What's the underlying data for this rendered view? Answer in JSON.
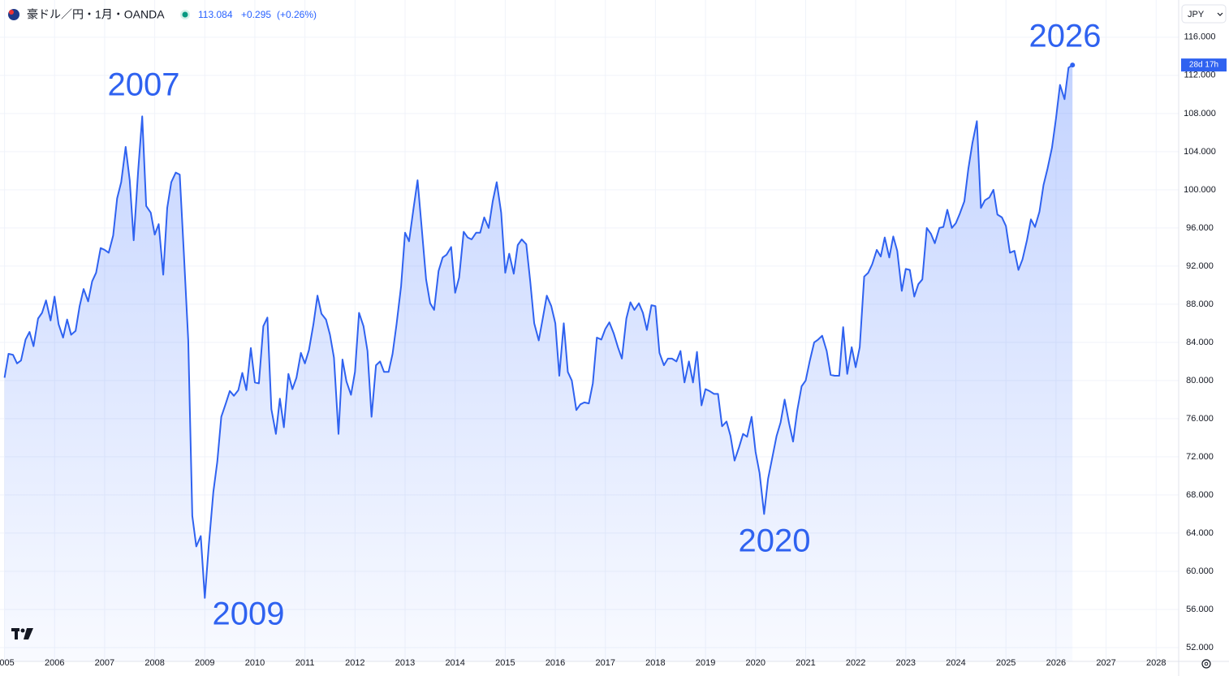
{
  "header": {
    "symbol": "豪ドル／円・1月・OANDA",
    "price": "113.084",
    "change": "+0.295",
    "change_pct": "(+0.26%)",
    "currency": "JPY"
  },
  "chart_data": {
    "type": "area",
    "color": "#2f62f0",
    "grid": true,
    "annotations": [
      "2007",
      "2009",
      "2020",
      "2026"
    ],
    "price_tag": "28d 17h",
    "xlim": [
      2004.91,
      2028.45
    ],
    "ylim": [
      50.55,
      119.9
    ],
    "xticks": [
      2005,
      2006,
      2007,
      2008,
      2009,
      2010,
      2011,
      2012,
      2013,
      2014,
      2015,
      2016,
      2017,
      2018,
      2019,
      2020,
      2021,
      2022,
      2023,
      2024,
      2025,
      2026,
      2027,
      2028
    ],
    "yticks": [
      {
        "value": 52,
        "label": "52.000"
      },
      {
        "value": 56,
        "label": "56.000"
      },
      {
        "value": 60,
        "label": "60.000"
      },
      {
        "value": 64,
        "label": "64.000"
      },
      {
        "value": 68,
        "label": "68.000"
      },
      {
        "value": 72,
        "label": "72.000"
      },
      {
        "value": 76,
        "label": "76.000"
      },
      {
        "value": 80,
        "label": "80.000"
      },
      {
        "value": 84,
        "label": "84.000"
      },
      {
        "value": 88,
        "label": "88.000"
      },
      {
        "value": 92,
        "label": "92.000"
      },
      {
        "value": 96,
        "label": "96.000"
      },
      {
        "value": 100,
        "label": "100.000"
      },
      {
        "value": 104,
        "label": "104.000"
      },
      {
        "value": 108,
        "label": "108.000"
      },
      {
        "value": 112,
        "label": "112.000"
      },
      {
        "value": 116,
        "label": "116.000"
      }
    ],
    "x": [
      2005,
      2005.08,
      2005.17,
      2005.25,
      2005.33,
      2005.42,
      2005.5,
      2005.58,
      2005.67,
      2005.75,
      2005.83,
      2005.92,
      2006,
      2006.08,
      2006.17,
      2006.25,
      2006.33,
      2006.42,
      2006.5,
      2006.58,
      2006.67,
      2006.75,
      2006.83,
      2006.92,
      2007,
      2007.08,
      2007.17,
      2007.25,
      2007.33,
      2007.42,
      2007.5,
      2007.58,
      2007.67,
      2007.75,
      2007.83,
      2007.92,
      2008,
      2008.08,
      2008.17,
      2008.25,
      2008.33,
      2008.42,
      2008.5,
      2008.58,
      2008.67,
      2008.75,
      2008.83,
      2008.92,
      2009,
      2009.08,
      2009.17,
      2009.25,
      2009.33,
      2009.42,
      2009.5,
      2009.58,
      2009.67,
      2009.75,
      2009.83,
      2009.92,
      2010,
      2010.08,
      2010.17,
      2010.25,
      2010.33,
      2010.42,
      2010.5,
      2010.58,
      2010.67,
      2010.75,
      2010.83,
      2010.92,
      2011,
      2011.08,
      2011.17,
      2011.25,
      2011.33,
      2011.42,
      2011.5,
      2011.58,
      2011.67,
      2011.75,
      2011.83,
      2011.92,
      2012,
      2012.08,
      2012.17,
      2012.25,
      2012.33,
      2012.42,
      2012.5,
      2012.58,
      2012.67,
      2012.75,
      2012.83,
      2012.92,
      2013,
      2013.08,
      2013.17,
      2013.25,
      2013.33,
      2013.42,
      2013.5,
      2013.58,
      2013.67,
      2013.75,
      2013.83,
      2013.92,
      2014,
      2014.08,
      2014.17,
      2014.25,
      2014.33,
      2014.42,
      2014.5,
      2014.58,
      2014.67,
      2014.75,
      2014.83,
      2014.92,
      2015,
      2015.08,
      2015.17,
      2015.25,
      2015.33,
      2015.42,
      2015.5,
      2015.58,
      2015.67,
      2015.75,
      2015.83,
      2015.92,
      2016,
      2016.08,
      2016.17,
      2016.25,
      2016.33,
      2016.42,
      2016.5,
      2016.58,
      2016.67,
      2016.75,
      2016.83,
      2016.92,
      2017,
      2017.08,
      2017.17,
      2017.25,
      2017.33,
      2017.42,
      2017.5,
      2017.58,
      2017.67,
      2017.75,
      2017.83,
      2017.92,
      2018,
      2018.08,
      2018.17,
      2018.25,
      2018.33,
      2018.42,
      2018.5,
      2018.58,
      2018.67,
      2018.75,
      2018.83,
      2018.92,
      2019,
      2019.08,
      2019.17,
      2019.25,
      2019.33,
      2019.42,
      2019.5,
      2019.58,
      2019.67,
      2019.75,
      2019.83,
      2019.92,
      2020,
      2020.08,
      2020.17,
      2020.25,
      2020.33,
      2020.42,
      2020.5,
      2020.58,
      2020.67,
      2020.75,
      2020.83,
      2020.92,
      2021,
      2021.08,
      2021.17,
      2021.25,
      2021.33,
      2021.42,
      2021.5,
      2021.58,
      2021.67,
      2021.75,
      2021.83,
      2021.92,
      2022,
      2022.08,
      2022.17,
      2022.25,
      2022.33,
      2022.42,
      2022.5,
      2022.58,
      2022.67,
      2022.75,
      2022.83,
      2022.92,
      2023,
      2023.08,
      2023.17,
      2023.25,
      2023.33,
      2023.42,
      2023.5,
      2023.58,
      2023.67,
      2023.75,
      2023.83,
      2023.92,
      2024,
      2024.08,
      2024.17,
      2024.25,
      2024.33,
      2024.42,
      2024.5,
      2024.58,
      2024.67,
      2024.75,
      2024.83,
      2024.92,
      2025,
      2025.08,
      2025.17,
      2025.25,
      2025.33,
      2025.42,
      2025.5,
      2025.58,
      2025.67,
      2025.75,
      2025.83,
      2025.92,
      2026,
      2026.08,
      2026.17,
      2026.25,
      2026.33
    ],
    "values": [
      80.3,
      82.8,
      82.7,
      81.8,
      82.1,
      84.3,
      85.1,
      83.6,
      86.5,
      87.1,
      88.4,
      86.3,
      88.8,
      85.9,
      84.5,
      86.4,
      84.8,
      85.2,
      87.8,
      89.6,
      88.3,
      90.4,
      91.3,
      93.9,
      93.7,
      93.4,
      95.2,
      99.1,
      100.8,
      104.5,
      101,
      94.7,
      102,
      107.7,
      98.3,
      97.6,
      95.3,
      96.4,
      91.1,
      98.1,
      100.8,
      101.8,
      101.6,
      93.5,
      84.2,
      65.8,
      62.6,
      63.7,
      57.2,
      62.7,
      68.3,
      71.5,
      76.2,
      77.6,
      78.9,
      78.4,
      79,
      80.8,
      79,
      83.4,
      79.8,
      79.7,
      85.7,
      86.6,
      77,
      74.4,
      78.1,
      75.1,
      80.7,
      79.1,
      80.3,
      82.9,
      81.8,
      83.2,
      85.9,
      88.9,
      87,
      86.4,
      84.8,
      82.4,
      74.4,
      82.2,
      79.9,
      78.5,
      80.9,
      87.1,
      85.7,
      83.1,
      76.2,
      81.6,
      82,
      80.9,
      80.9,
      82.8,
      85.9,
      89.9,
      95.5,
      94.6,
      98.1,
      101,
      96.1,
      90.6,
      88.1,
      87.4,
      91.5,
      92.9,
      93.2,
      94,
      89.2,
      90.8,
      95.6,
      95,
      94.8,
      95.5,
      95.5,
      97.1,
      96,
      98.8,
      100.8,
      97.6,
      91.3,
      93.3,
      91.2,
      94.2,
      94.8,
      94.3,
      90.4,
      86,
      84.2,
      86.5,
      88.9,
      87.8,
      86,
      80.5,
      86,
      80.9,
      80,
      76.9,
      77.5,
      77.7,
      77.6,
      79.7,
      84.5,
      84.3,
      85.4,
      86.1,
      84.9,
      83.5,
      82.3,
      86.5,
      88.2,
      87.4,
      88.1,
      87.1,
      85.3,
      87.9,
      87.8,
      82.9,
      81.6,
      82.3,
      82.3,
      82,
      83.1,
      79.8,
      82,
      79.8,
      83,
      77.4,
      79.1,
      78.9,
      78.6,
      78.6,
      75.2,
      75.7,
      74.2,
      71.6,
      73,
      74.4,
      74.1,
      76.2,
      72.5,
      70.3,
      66,
      69.7,
      71.8,
      74.2,
      75.6,
      78,
      75.5,
      73.6,
      76.8,
      79.4,
      80,
      82,
      84,
      84.3,
      84.7,
      83.1,
      80.6,
      80.5,
      80.5,
      85.6,
      80.7,
      83.5,
      81.4,
      83.5,
      90.9,
      91.3,
      92.2,
      93.7,
      93,
      95,
      92.9,
      95.1,
      93.6,
      89.4,
      91.7,
      91.6,
      88.8,
      90.1,
      90.6,
      96,
      95.4,
      94.4,
      96,
      96.1,
      97.9,
      96,
      96.5,
      97.5,
      98.8,
      102.2,
      104.9,
      107.2,
      98.1,
      98.9,
      99.2,
      100,
      97.4,
      97.1,
      96.2,
      93.4,
      93.6,
      91.6,
      92.7,
      94.7,
      96.9,
      96.1,
      97.7,
      100.5,
      102.2,
      104.4,
      107.5,
      111,
      109.5,
      112.8,
      113.084
    ]
  }
}
